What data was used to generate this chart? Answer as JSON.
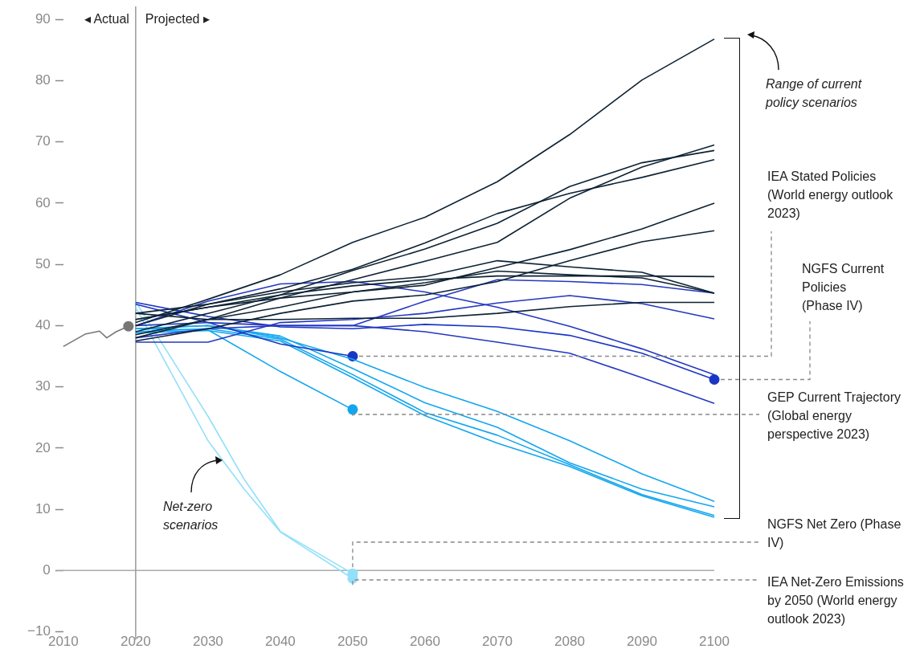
{
  "chart_data": {
    "type": "line",
    "x": [
      2020,
      2030,
      2040,
      2050,
      2060,
      2070,
      2080,
      2090,
      2100
    ],
    "xlim": [
      2010,
      2100
    ],
    "xticks": [
      2010,
      2020,
      2030,
      2040,
      2050,
      2060,
      2070,
      2080,
      2090,
      2100
    ],
    "ylim": [
      -10,
      90
    ],
    "yticks": [
      -10,
      0,
      10,
      20,
      30,
      40,
      50,
      60,
      70,
      80,
      90
    ],
    "series": [
      {
        "color": "#777777",
        "x": [
          2010,
          2013,
          2015,
          2016,
          2017.3,
          2019
        ],
        "values": [
          36.6,
          38.6,
          39.1,
          38.0,
          39.0,
          39.9
        ]
      },
      {
        "color": "#0d2233",
        "values": [
          40.5,
          44.3,
          48.3,
          53.6,
          57.7,
          63.5,
          71.2,
          80.1,
          86.8
        ]
      },
      {
        "color": "#0d2233",
        "values": [
          40,
          43.5,
          46,
          49.2,
          53.5,
          58.3,
          61.6,
          64.2,
          67.1
        ]
      },
      {
        "color": "#0d2233",
        "values": [
          39,
          42,
          45,
          49,
          52.5,
          56.7,
          62.7,
          66.6,
          68.6
        ]
      },
      {
        "color": "#0d2233",
        "values": [
          38,
          41,
          44.5,
          47.5,
          50.5,
          53.6,
          60.8,
          65.9,
          69.5
        ]
      },
      {
        "color": "#0d2233",
        "values": [
          38.5,
          41,
          43,
          45.5,
          46.6,
          49.5,
          52.4,
          55.8,
          60.0
        ]
      },
      {
        "color": "#0d2233",
        "values": [
          37.5,
          39.5,
          42,
          44,
          45,
          47.2,
          50.6,
          53.7,
          55.5
        ]
      },
      {
        "color": "#0d2233",
        "values": [
          42,
          43.5,
          45.5,
          47,
          48,
          50.6,
          49.6,
          48.7,
          45.3
        ]
      },
      {
        "color": "#0d2233",
        "values": [
          41,
          43,
          44.5,
          45.5,
          47,
          48.9,
          48.3,
          47.8,
          45.3
        ]
      },
      {
        "color": "#0d2233",
        "values": [
          41,
          43,
          45,
          46.5,
          47.5,
          48.1,
          48.1,
          48.1,
          48.0
        ]
      },
      {
        "color": "#0d2233",
        "values": [
          42,
          41,
          41,
          41.2,
          41.2,
          42,
          43.1,
          43.8,
          43.8
        ]
      },
      {
        "color": "#2438c0",
        "values": [
          40,
          44,
          46.8,
          47.2,
          45.5,
          43,
          39.9,
          36.2,
          32
        ]
      },
      {
        "color": "#2438c0",
        "values": [
          37.3,
          37.3,
          40.5,
          41,
          42,
          43.7,
          44.9,
          43.6,
          41.1
        ]
      },
      {
        "color": "#2438c0",
        "values": [
          38,
          39.5,
          40,
          40,
          44,
          47.5,
          47.2,
          46.7,
          45.3
        ]
      },
      {
        "color": "#2438c0",
        "values": [
          40,
          40.5,
          40,
          40,
          39,
          37.3,
          35.5,
          31.5,
          27.3
        ]
      },
      {
        "color": "#1a36c4",
        "values": [
          43.8,
          41.5,
          39.8,
          39.5,
          40.2,
          39.8,
          38.4,
          35.5,
          31.2
        ]
      },
      {
        "color": "#1a36c4",
        "x": [
          2020,
          2030,
          2040,
          2050
        ],
        "values": [
          43.5,
          40.5,
          37,
          35
        ]
      },
      {
        "color": "#12a6ee",
        "values": [
          39.5,
          40,
          38,
          34.5,
          29.9,
          26.0,
          21.2,
          15.8,
          11.3
        ]
      },
      {
        "color": "#12a6ee",
        "values": [
          39.5,
          40,
          38.3,
          33,
          27.4,
          23.4,
          17.6,
          13.3,
          10.4
        ]
      },
      {
        "color": "#12a6ee",
        "values": [
          39,
          39.5,
          37.8,
          32,
          25.8,
          22.1,
          17.3,
          12.4,
          9.0
        ]
      },
      {
        "color": "#12a6ee",
        "values": [
          38.8,
          39.2,
          37.5,
          31.5,
          25.3,
          20.8,
          17.0,
          12.2,
          8.7
        ]
      },
      {
        "color": "#12a6ee",
        "x": [
          2020,
          2030,
          2040,
          2050
        ],
        "values": [
          39.5,
          39.3,
          32.5,
          26.3
        ]
      },
      {
        "color": "#92e0fa",
        "x": [
          2020,
          2030,
          2035,
          2040,
          2050
        ],
        "values": [
          43.9,
          25.2,
          14.9,
          6.4,
          -0.5
        ]
      },
      {
        "color": "#92e0fa",
        "x": [
          2020,
          2030,
          2035,
          2040,
          2050
        ],
        "values": [
          43,
          21.2,
          13.3,
          6.3,
          -1.3
        ]
      },
      {
        "type": "scatter",
        "color": "#777777",
        "x": [
          2019
        ],
        "values": [
          39.9
        ]
      },
      {
        "type": "scatter",
        "color": "#1a36c4",
        "x": [
          2100,
          2050
        ],
        "values": [
          31.2,
          35
        ]
      },
      {
        "type": "scatter",
        "color": "#12a6ee",
        "x": [
          2050
        ],
        "values": [
          26.3
        ]
      },
      {
        "type": "scatter",
        "color": "#92e0fa",
        "x": [
          2050,
          2050
        ],
        "values": [
          -0.5,
          -1.3
        ]
      }
    ],
    "ref_lines": [
      {
        "axis": "y",
        "value": 0,
        "color": "#aaaaaa"
      },
      {
        "axis": "x",
        "value": 2020,
        "color": "#999999"
      }
    ],
    "annotations": [
      {
        "text": "◂ Actual",
        "x": 2020,
        "y": 90
      },
      {
        "text": "Projected ▸",
        "x": 2020,
        "y": 90
      },
      "Range of current policy scenarios",
      {
        "text": "Net-zero scenarios",
        "x": 2032,
        "y": 18
      },
      {
        "text": "IEA Stated Policies (World energy outlook 2023)",
        "x": 2050,
        "y": 35
      },
      {
        "text": "NGFS Current Policies (Phase IV)",
        "x": 2100,
        "y": 31.2
      },
      {
        "text": "GEP Current Trajectory (Global energy perspective 2023)",
        "x": 2050,
        "y": 26.3
      },
      {
        "text": "NGFS Net Zero (Phase IV)",
        "x": 2050,
        "y": -0.5
      },
      {
        "text": "IEA Net-Zero Emissions by 2050 (World energy outlook 2023)",
        "x": 2050,
        "y": -1.3
      }
    ]
  }
}
